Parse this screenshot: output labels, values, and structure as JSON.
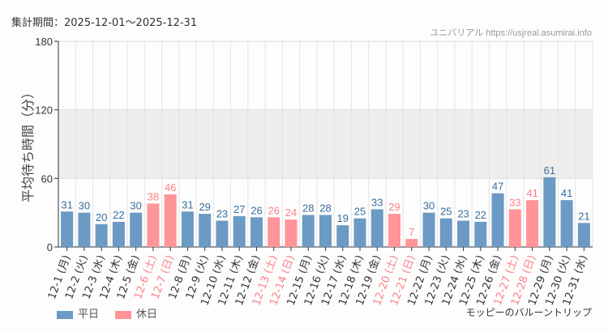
{
  "header": {
    "period": "集計期間：2025-12-01～2025-12-31",
    "credit": "ユニバリアル https://usjreal.asumirai.info"
  },
  "footer": {
    "source": "モッピーのバルーントリップ"
  },
  "colors": {
    "weekday": "#6b9ac4",
    "holiday": "#ff9499",
    "holiday_label": "#ff7f87",
    "band": "#eeeeee"
  },
  "chart_data": {
    "type": "bar",
    "title": "",
    "ylabel": "平均待ち時間（分）",
    "ylim": [
      0,
      180
    ],
    "yticks": [
      0,
      60,
      120,
      180
    ],
    "grid": true,
    "shaded_band": [
      60,
      120
    ],
    "legend_position": "bottom-left",
    "categories": [
      "12-1 (月)",
      "12-2 (火)",
      "12-3 (水)",
      "12-4 (木)",
      "12-5 (金)",
      "12-6 (土)",
      "12-7 (日)",
      "12-8 (月)",
      "12-9 (火)",
      "12-10 (水)",
      "12-11 (木)",
      "12-12 (金)",
      "12-13 (土)",
      "12-14 (日)",
      "12-15 (月)",
      "12-16 (火)",
      "12-17 (水)",
      "12-18 (木)",
      "12-19 (金)",
      "12-20 (土)",
      "12-21 (日)",
      "12-22 (月)",
      "12-23 (火)",
      "12-24 (水)",
      "12-25 (木)",
      "12-26 (金)",
      "12-27 (土)",
      "12-28 (日)",
      "12-29 (月)",
      "12-30 (火)",
      "12-31 (水)"
    ],
    "values": [
      31,
      30,
      20,
      22,
      30,
      38,
      46,
      31,
      29,
      23,
      27,
      26,
      26,
      24,
      28,
      28,
      19,
      25,
      33,
      29,
      7,
      30,
      25,
      23,
      22,
      47,
      33,
      41,
      61,
      41,
      21
    ],
    "day_type": [
      "平日",
      "平日",
      "平日",
      "平日",
      "平日",
      "休日",
      "休日",
      "平日",
      "平日",
      "平日",
      "平日",
      "平日",
      "休日",
      "休日",
      "平日",
      "平日",
      "平日",
      "平日",
      "平日",
      "休日",
      "休日",
      "平日",
      "平日",
      "平日",
      "平日",
      "平日",
      "休日",
      "休日",
      "平日",
      "平日",
      "平日"
    ],
    "series": [
      {
        "name": "平日"
      },
      {
        "name": "休日"
      }
    ]
  }
}
